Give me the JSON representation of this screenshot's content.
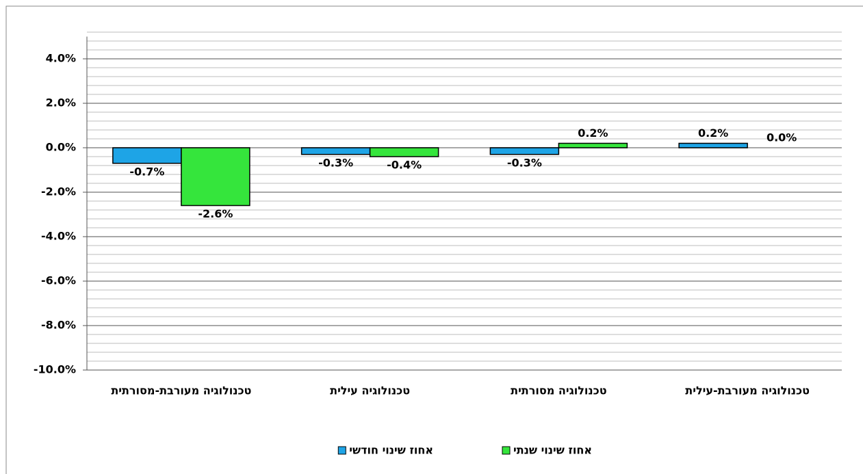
{
  "chart_data": {
    "type": "bar",
    "categories": [
      "טכנולוגיה מעורבת-מסורתית",
      "טכנולוגיה עילית",
      "טכנולוגיה מסורתית",
      "טכנולוגיה מעורבת-עילית"
    ],
    "series": [
      {
        "name": "אחוז שינוי חודשי",
        "color": "#1ea4e6",
        "values": [
          -0.7,
          -0.3,
          -0.3,
          0.2
        ],
        "value_labels": [
          "-0.7%",
          "-0.3%",
          "-0.3%",
          "0.2%"
        ]
      },
      {
        "name": "אחוז שינוי שנתי",
        "color": "#35e53c",
        "values": [
          -2.6,
          -0.4,
          0.2,
          0.0
        ],
        "value_labels": [
          "-2.6%",
          "-0.4%",
          "0.2%",
          "0.0%"
        ]
      }
    ],
    "ylim": [
      -10,
      5
    ],
    "yticks": [
      {
        "value": -10,
        "label": "-10.0%"
      },
      {
        "value": -8,
        "label": "-8.0%"
      },
      {
        "value": -6,
        "label": "-6.0%"
      },
      {
        "value": -4,
        "label": "-4.0%"
      },
      {
        "value": -2,
        "label": "-2.0%"
      },
      {
        "value": 0,
        "label": "0.0%"
      },
      {
        "value": 2,
        "label": "2.0%"
      },
      {
        "value": 4,
        "label": "4.0%"
      }
    ],
    "grid": true,
    "minor_grid_divisions": 5,
    "legend": "bottom"
  }
}
